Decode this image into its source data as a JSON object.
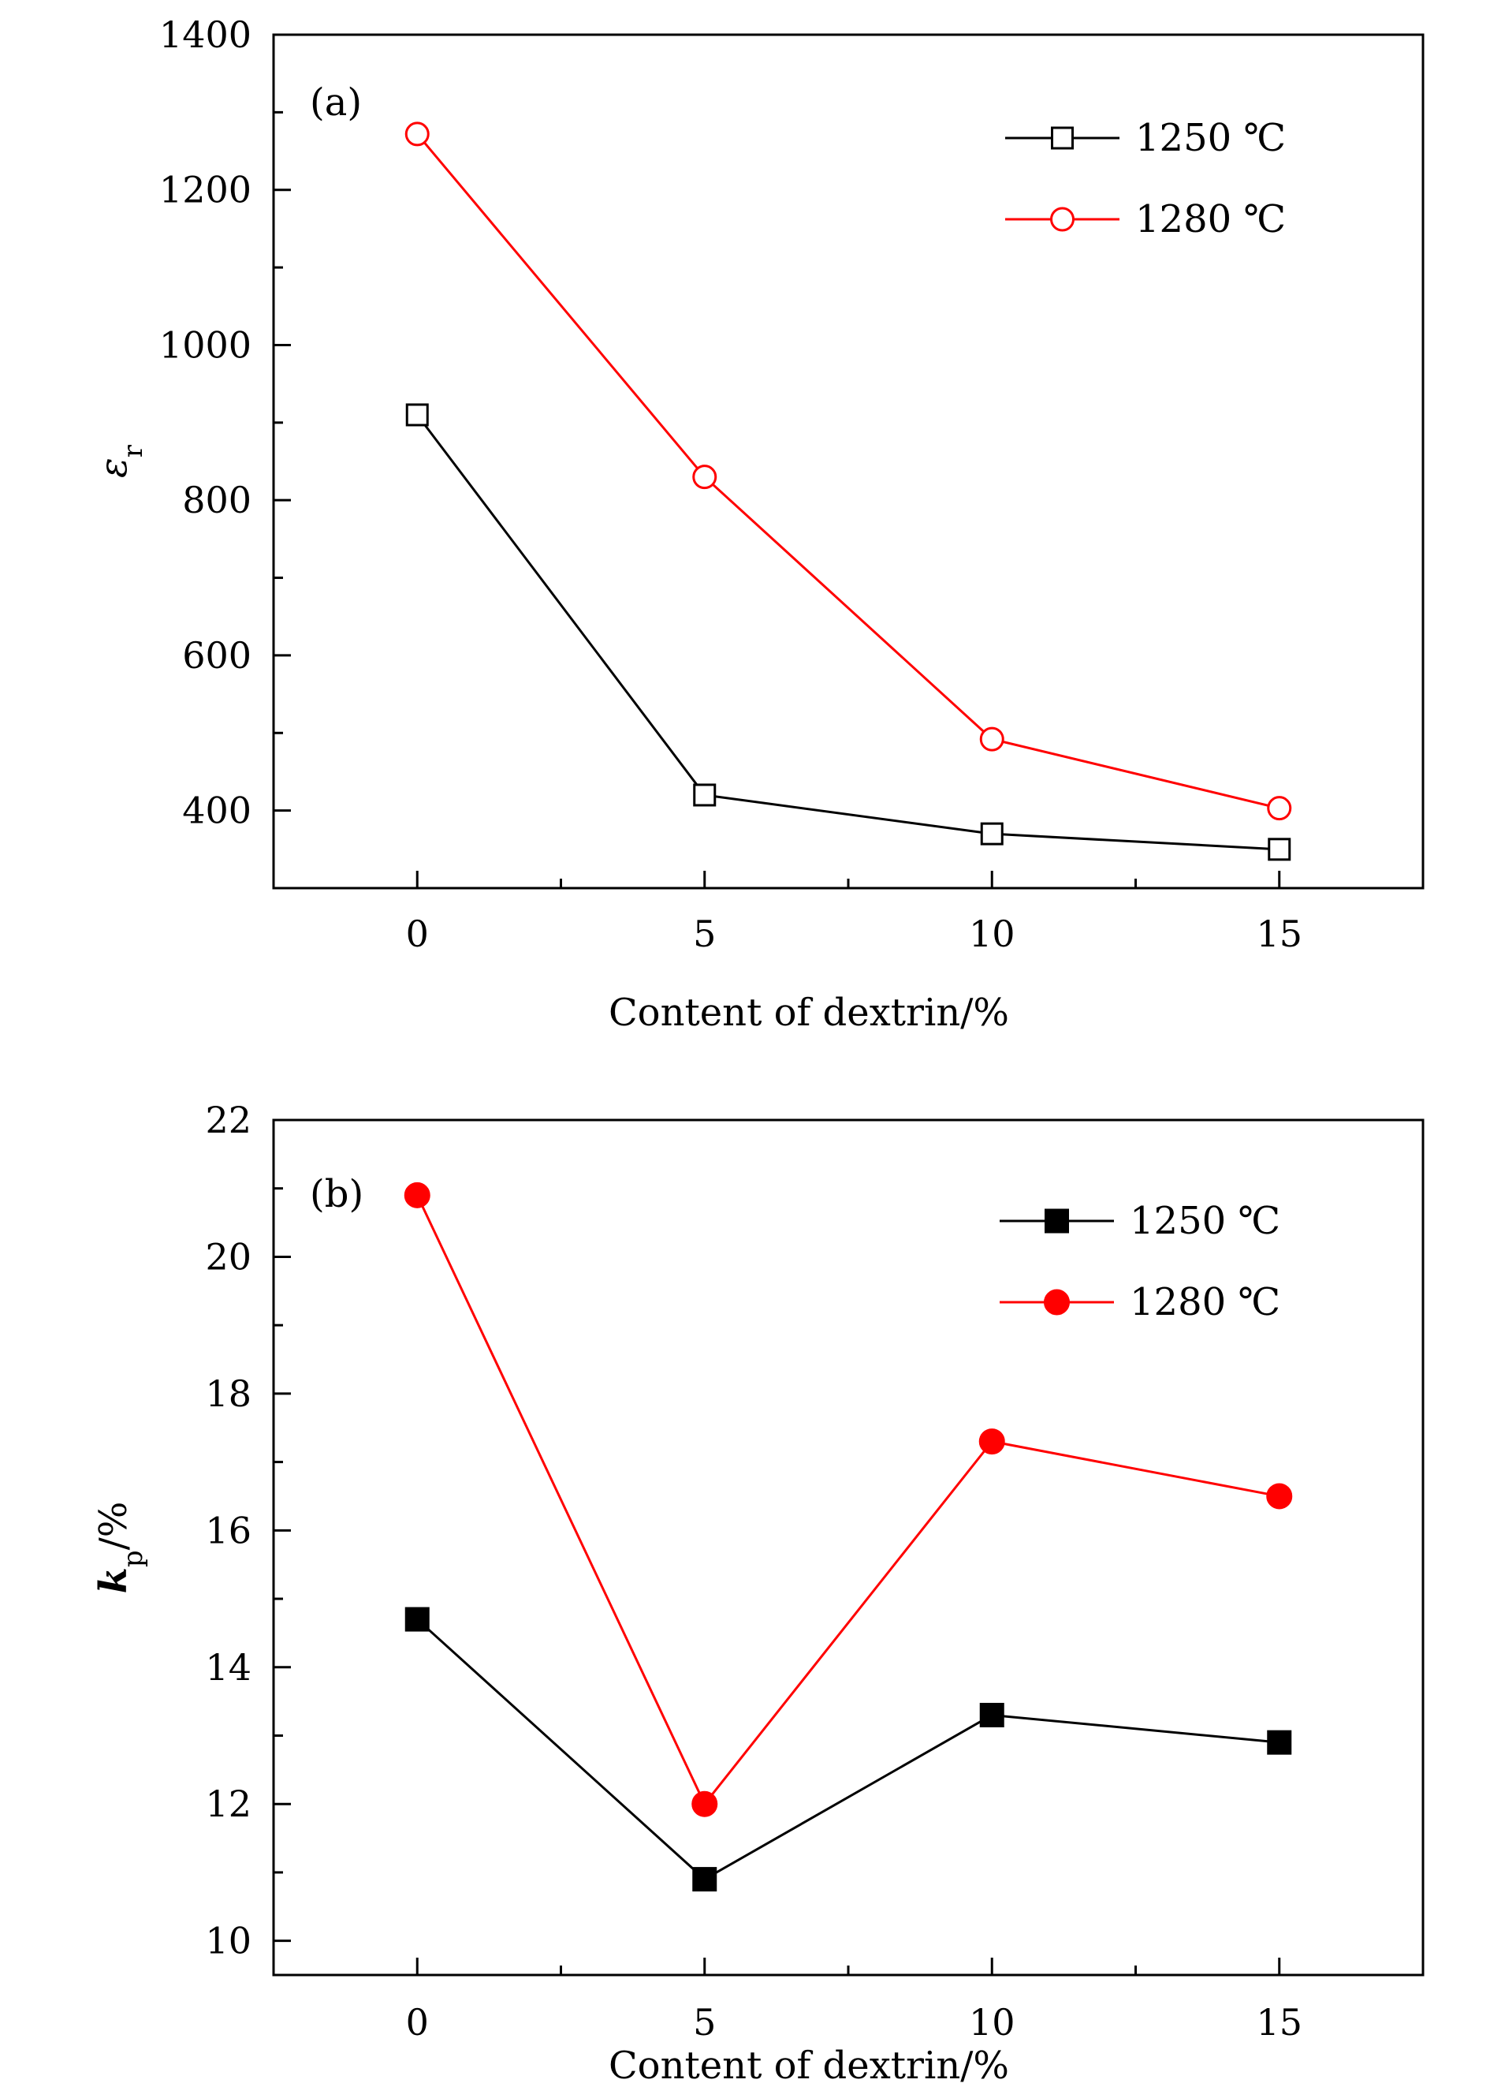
{
  "chart_data": [
    {
      "type": "line",
      "panel_label": "(a)",
      "xlabel": "Content of dextrin/%",
      "ylabel": "εr",
      "ylabel_base": "ε",
      "ylabel_sub": "r",
      "ylabel_suffix": "",
      "xlim": [
        -2.5,
        17.5
      ],
      "ylim": [
        300,
        1400
      ],
      "xticks": [
        0,
        5,
        10,
        15
      ],
      "xtick_labels": [
        "0",
        "5",
        "10",
        "15"
      ],
      "yticks": [
        400,
        600,
        800,
        1000,
        1200,
        1400
      ],
      "ytick_labels": [
        "400",
        "600",
        "800",
        "1000",
        "1200",
        "1400"
      ],
      "x": [
        0,
        5,
        10,
        15
      ],
      "grid": false,
      "legend_position": "top-right",
      "series": [
        {
          "name": "1250 ℃",
          "values": [
            910,
            420,
            370,
            350
          ],
          "color": "#000000",
          "marker": "open-square"
        },
        {
          "name": "1280 ℃",
          "values": [
            1272,
            830,
            492,
            403
          ],
          "color": "#ff0000",
          "marker": "open-circle"
        }
      ]
    },
    {
      "type": "line",
      "panel_label": "(b)",
      "xlabel": "Content of dextrin/%",
      "ylabel": "kp/%",
      "ylabel_base": "k",
      "ylabel_sub": "p",
      "ylabel_suffix": "/%",
      "xlim": [
        -2.5,
        17.5
      ],
      "ylim": [
        9.5,
        22
      ],
      "xticks": [
        0,
        5,
        10,
        15
      ],
      "xtick_labels": [
        "0",
        "5",
        "10",
        "15"
      ],
      "yticks": [
        10,
        12,
        14,
        16,
        18,
        20,
        22
      ],
      "ytick_labels": [
        "10",
        "12",
        "14",
        "16",
        "18",
        "20",
        "22"
      ],
      "x": [
        0,
        5,
        10,
        15
      ],
      "grid": false,
      "legend_position": "top-right",
      "series": [
        {
          "name": "1250 ℃",
          "values": [
            14.7,
            10.9,
            13.3,
            12.9
          ],
          "color": "#000000",
          "marker": "filled-square"
        },
        {
          "name": "1280 ℃",
          "values": [
            20.9,
            12.0,
            17.3,
            16.5
          ],
          "color": "#ff0000",
          "marker": "filled-circle"
        }
      ]
    }
  ]
}
